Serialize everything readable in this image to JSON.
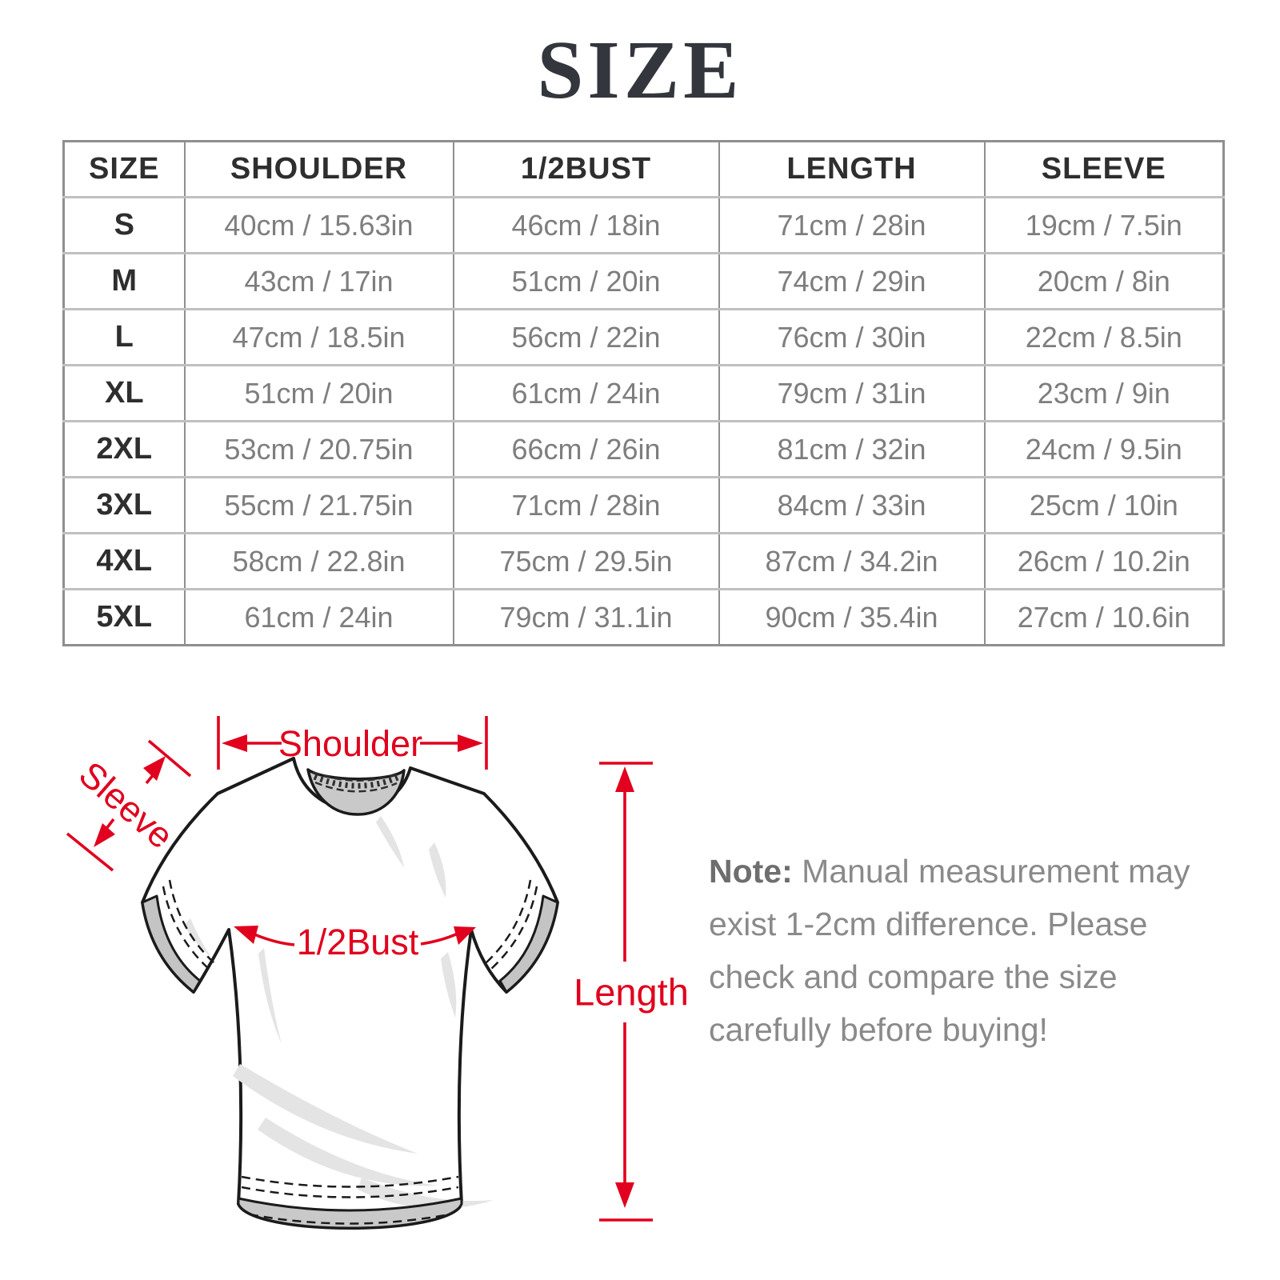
{
  "title": "SIZE",
  "table": {
    "headers": [
      "SIZE",
      "SHOULDER",
      "1/2BUST",
      "LENGTH",
      "SLEEVE"
    ],
    "rows": [
      [
        "S",
        "40cm / 15.63in",
        "46cm / 18in",
        "71cm / 28in",
        "19cm / 7.5in"
      ],
      [
        "M",
        "43cm / 17in",
        "51cm / 20in",
        "74cm / 29in",
        "20cm / 8in"
      ],
      [
        "L",
        "47cm / 18.5in",
        "56cm / 22in",
        "76cm / 30in",
        "22cm / 8.5in"
      ],
      [
        "XL",
        "51cm / 20in",
        "61cm / 24in",
        "79cm / 31in",
        "23cm / 9in"
      ],
      [
        "2XL",
        "53cm / 20.75in",
        "66cm / 26in",
        "81cm / 32in",
        "24cm / 9.5in"
      ],
      [
        "3XL",
        "55cm / 21.75in",
        "71cm / 28in",
        "84cm / 33in",
        "25cm / 10in"
      ],
      [
        "4XL",
        "58cm / 22.8in",
        "75cm / 29.5in",
        "87cm / 34.2in",
        "26cm / 10.2in"
      ],
      [
        "5XL",
        "61cm / 24in",
        "79cm / 31.1in",
        "90cm / 35.4in",
        "27cm / 10.6in"
      ]
    ]
  },
  "diagram": {
    "shoulder_label": "Shoulder",
    "sleeve_label": "Sleeve",
    "bust_label": "1/2Bust",
    "length_label": "Length",
    "accent_color": "#e1001d"
  },
  "note": {
    "label": "Note:",
    "line1": "Manual measurement may",
    "line2": "exist 1-2cm difference. Please",
    "line3": "check and compare the size",
    "line4": "carefully before buying!"
  }
}
